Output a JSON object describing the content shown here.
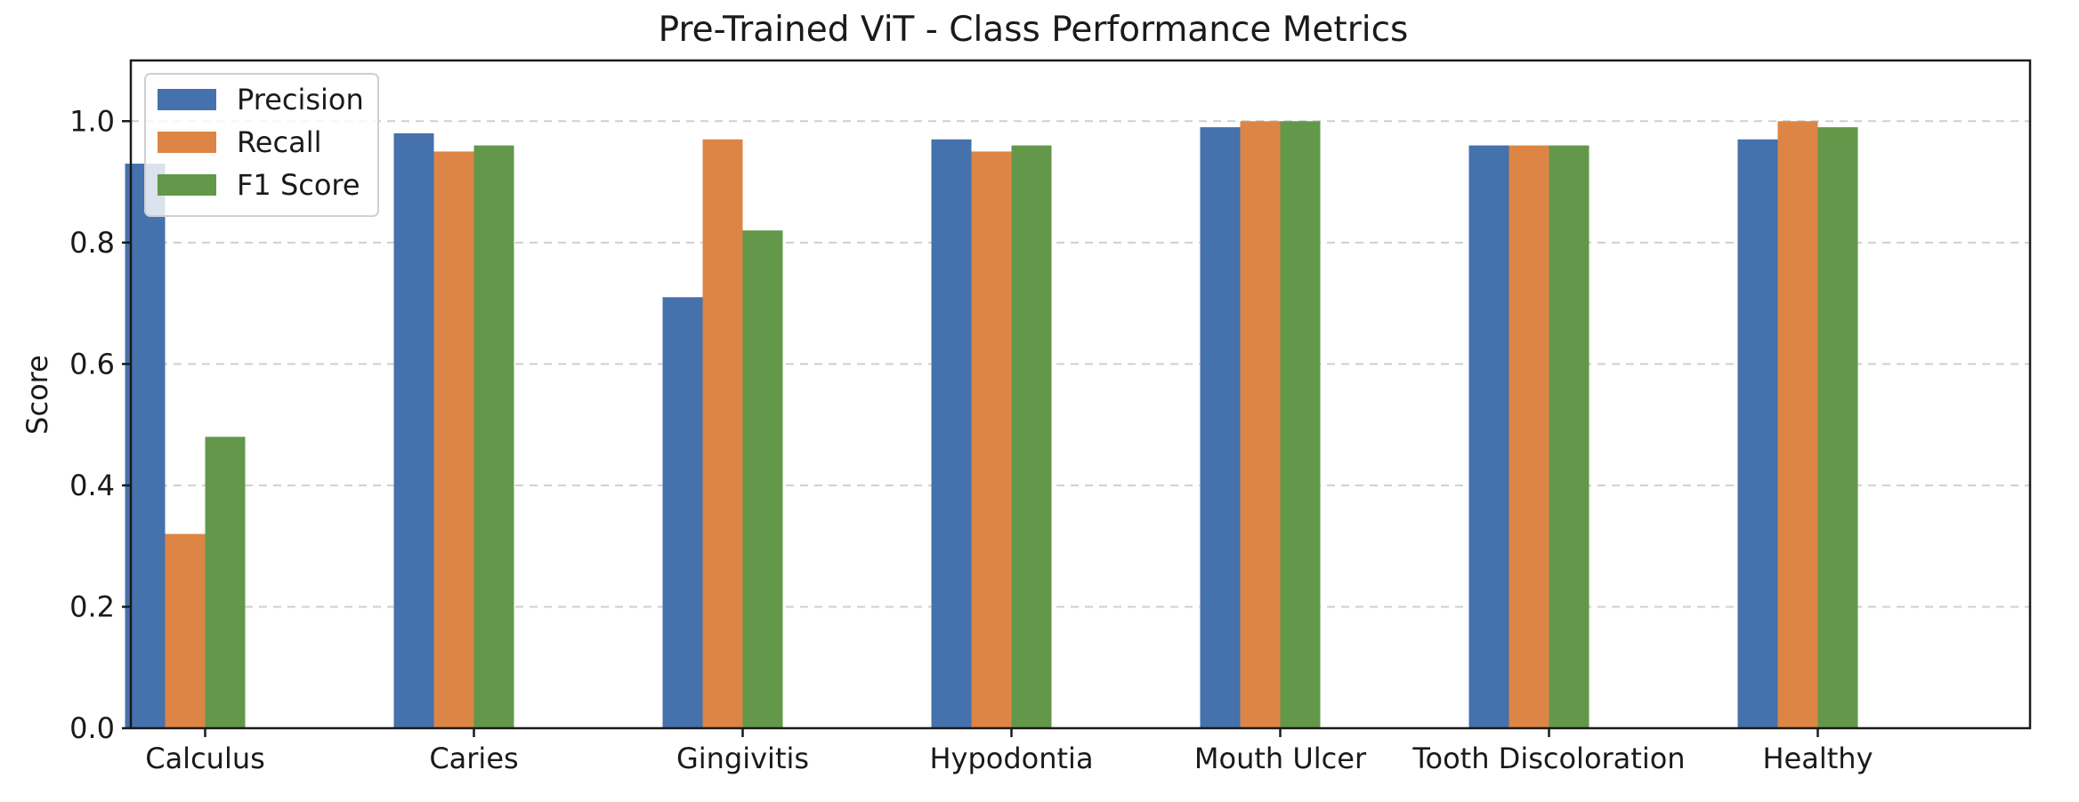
{
  "chart_data": {
    "type": "bar",
    "title": "Pre-Trained ViT - Class Performance Metrics",
    "xlabel": "",
    "ylabel": "Score",
    "ylim": [
      0,
      1.1
    ],
    "yticks": [
      "0.0",
      "0.2",
      "0.4",
      "0.6",
      "0.8",
      "1.0"
    ],
    "grid": "horizontal dashed",
    "legend_position": "top-left",
    "categories": [
      "Calculus",
      "Caries",
      "Gingivitis",
      "Hypodontia",
      "Mouth Ulcer",
      "Tooth Discoloration",
      "Healthy"
    ],
    "series": [
      {
        "name": "Precision",
        "color": "#4571ac",
        "values": [
          0.93,
          0.98,
          0.71,
          0.97,
          0.99,
          0.96,
          0.97
        ]
      },
      {
        "name": "Recall",
        "color": "#dc8544",
        "values": [
          0.32,
          0.95,
          0.97,
          0.95,
          1.0,
          0.96,
          1.0
        ]
      },
      {
        "name": "F1 Score",
        "color": "#63984a",
        "values": [
          0.48,
          0.96,
          0.82,
          0.96,
          1.0,
          0.96,
          0.99
        ]
      }
    ]
  }
}
